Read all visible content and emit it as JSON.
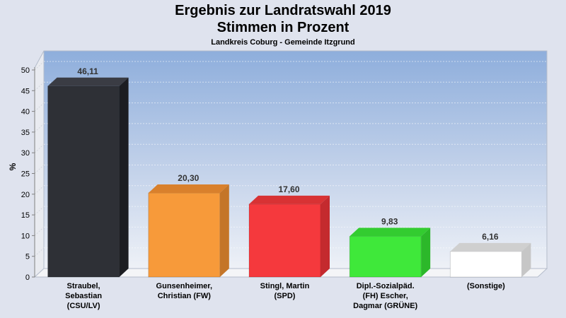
{
  "chart_data": {
    "type": "bar",
    "title": "Ergebnis zur Landratswahl 2019",
    "title_line2": "Stimmen in Prozent",
    "subtitle": "Landkreis Coburg - Gemeinde Itzgrund",
    "ylabel": "%",
    "ylim": [
      0,
      50
    ],
    "yticks": [
      0,
      5,
      10,
      15,
      20,
      25,
      30,
      35,
      40,
      45,
      50
    ],
    "grid": true,
    "categories": [
      "Straubel,\nSebastian\n(CSU/LV)",
      "Gunsenheimer,\nChristian (FW)",
      "Stingl, Martin\n(SPD)",
      "Dipl.-Sozialpäd.\n(FH) Escher,\nDagmar (GRÜNE)",
      "(Sonstige)"
    ],
    "values": [
      46.11,
      20.3,
      17.6,
      9.83,
      6.16
    ],
    "value_labels": [
      "46,11",
      "20,30",
      "17,60",
      "9,83",
      "6,16"
    ],
    "colors": [
      "#2e3036",
      "#f79a3a",
      "#f5393d",
      "#3fe83a",
      "#ffffff"
    ],
    "side_colors": [
      "#1c1d22",
      "#c47528",
      "#c42a2e",
      "#2cb82a",
      "#c6c6c6"
    ],
    "top_colors": [
      "#3a3c44",
      "#d9802c",
      "#d83234",
      "#33cc30",
      "#cfcfcf"
    ]
  }
}
